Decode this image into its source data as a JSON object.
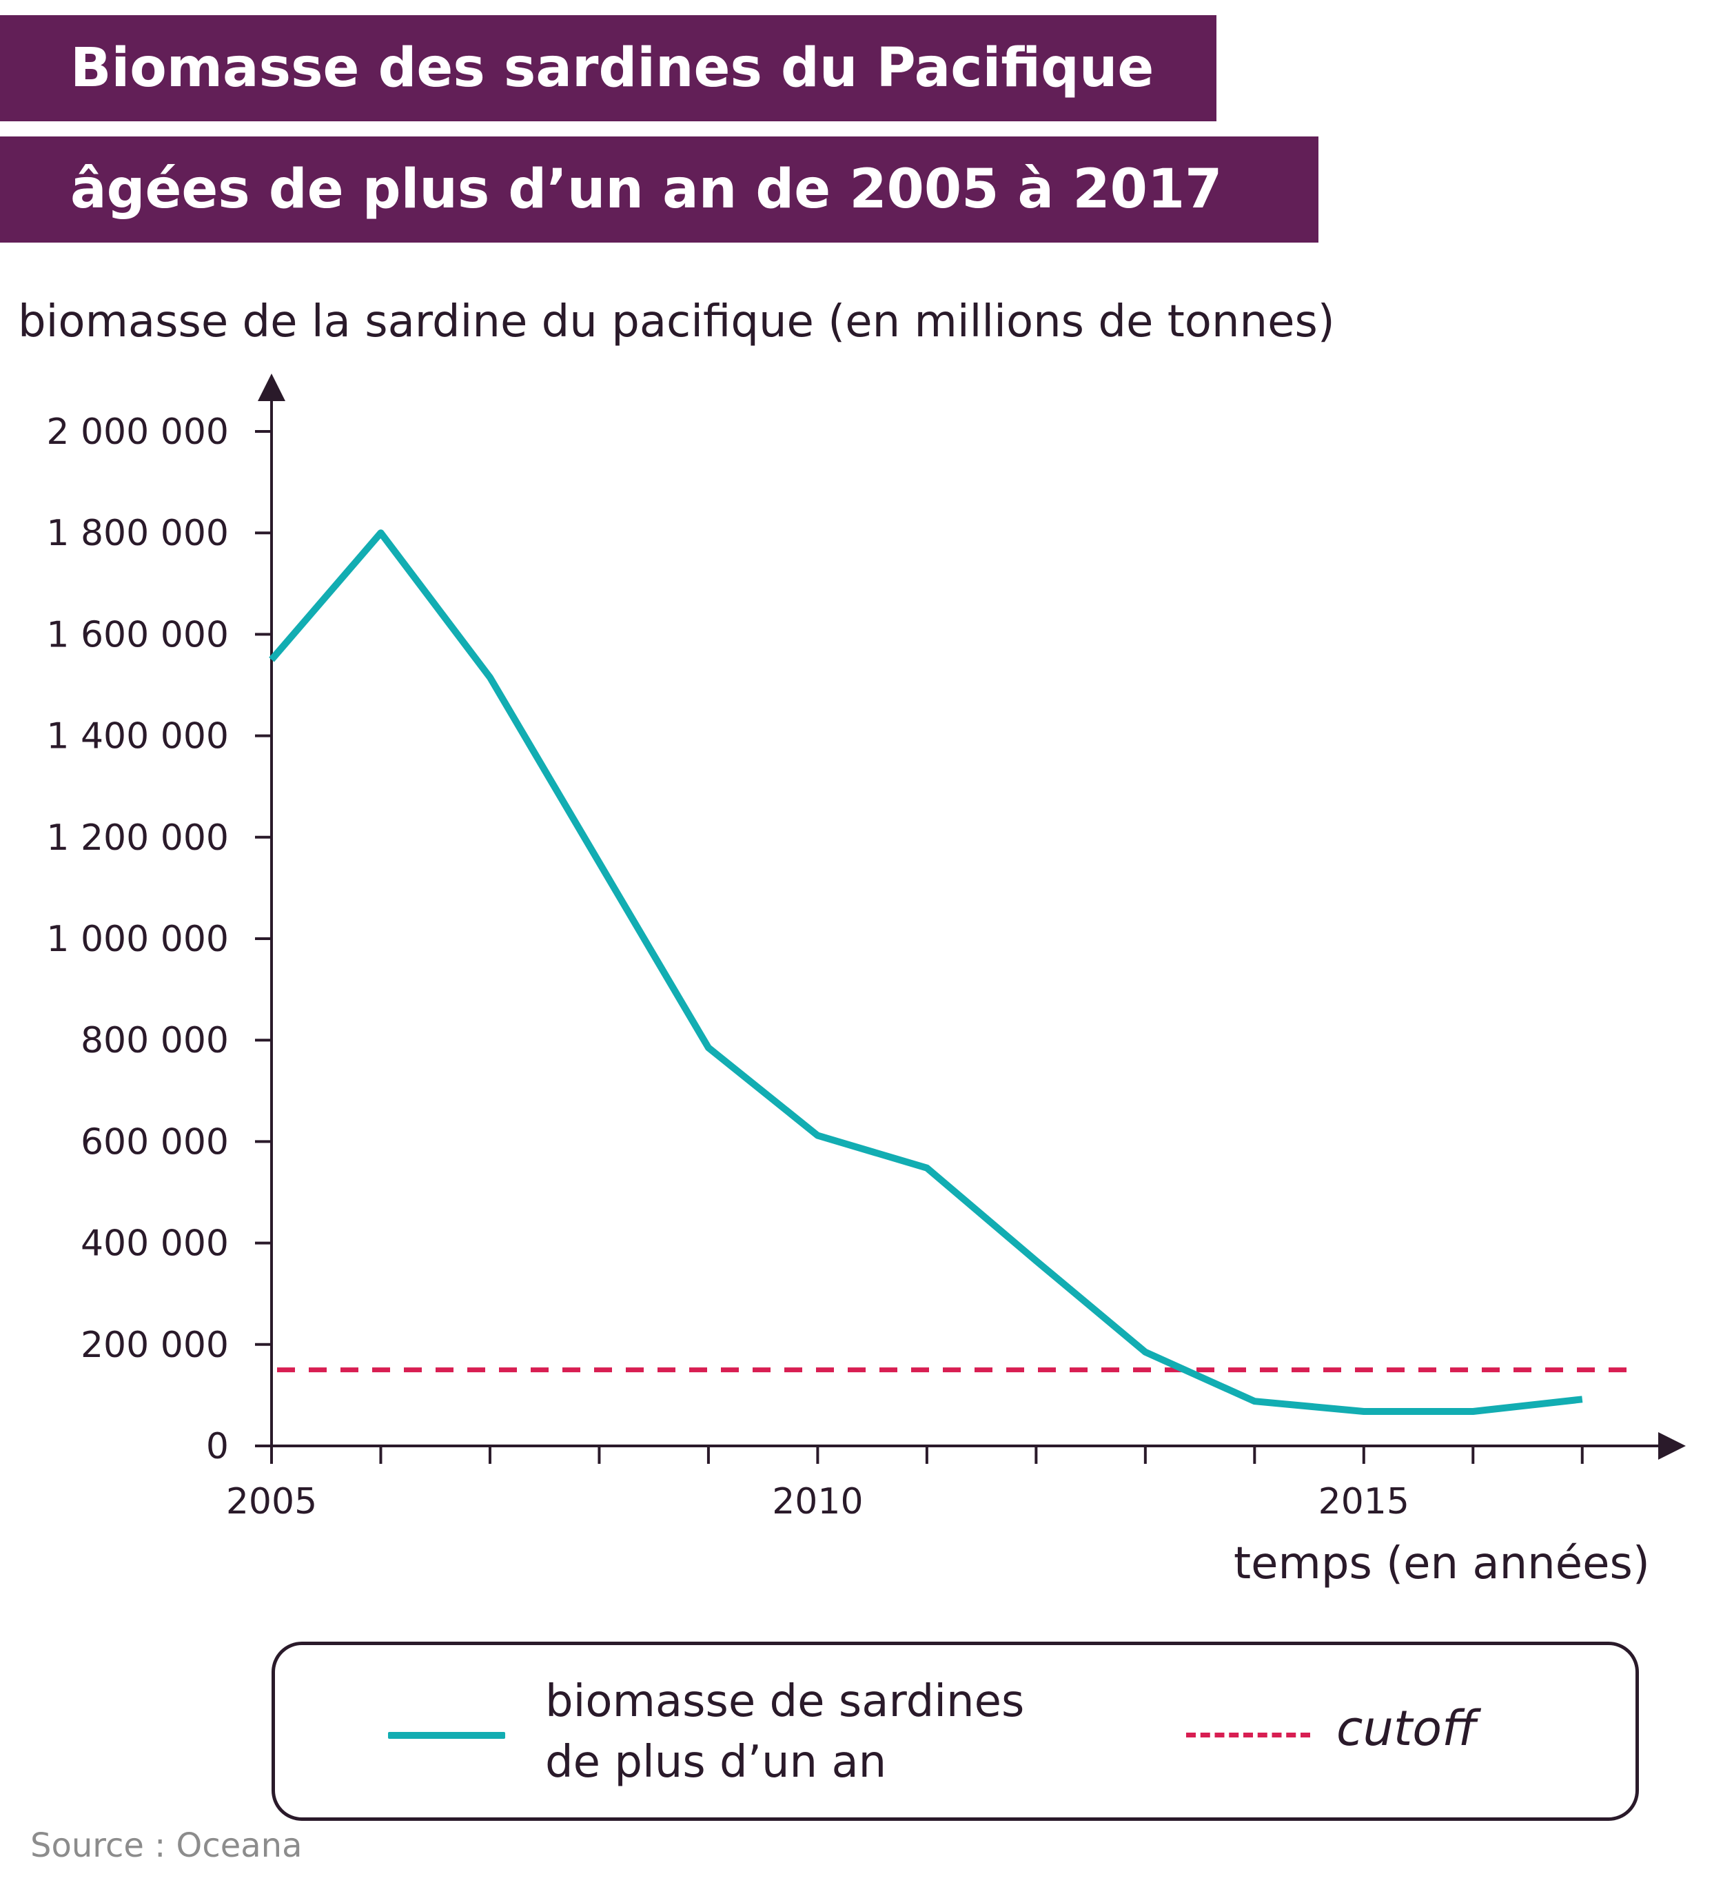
{
  "chart_data": {
    "type": "line",
    "title": "Biomasse des sardines du Pacifique",
    "subtitle": "âgées de plus d’un an de 2005 à 2017",
    "ylabel": "biomasse de la sardine du pacifique (en millions de tonnes)",
    "xlabel": "temps (en années)",
    "x": [
      2005,
      2006,
      2007,
      2008,
      2009,
      2010,
      2011,
      2012,
      2013,
      2014,
      2015,
      2016,
      2017
    ],
    "series": [
      {
        "name": "biomasse de sardines de plus d’un an",
        "values": [
          1550000,
          1800000,
          1515000,
          1150000,
          785000,
          612000,
          548000,
          365000,
          185000,
          88000,
          68000,
          68000,
          92000
        ],
        "color": "#12adb2"
      }
    ],
    "reference_line": {
      "name": "cutoff",
      "value": 150000,
      "color": "#d81e52",
      "style": "dashed"
    },
    "xlim": [
      2005,
      2017.5
    ],
    "ylim": [
      0,
      2000000
    ],
    "y_ticks": [
      0,
      200000,
      400000,
      600000,
      800000,
      1000000,
      1200000,
      1400000,
      1600000,
      1800000,
      2000000
    ],
    "y_tick_labels": [
      "0",
      "200 000",
      "400 000",
      "600 000",
      "800 000",
      "1 000 000",
      "1 200 000",
      "1 400 000",
      "1 600 000",
      "1 800 000",
      "2 000 000"
    ],
    "x_ticks": [
      2005,
      2006,
      2007,
      2008,
      2009,
      2010,
      2011,
      2012,
      2013,
      2014,
      2015,
      2016,
      2017
    ],
    "x_tick_labels": [
      {
        "value": 2005,
        "label": "2005"
      },
      {
        "value": 2010,
        "label": "2010"
      },
      {
        "value": 2015,
        "label": "2015"
      }
    ],
    "grid": false,
    "legend_position": "bottom",
    "legend": {
      "line_label": "biomasse de sardines de plus d’un an",
      "dash_label": "cutoff"
    },
    "source": "Source : Oceana"
  }
}
